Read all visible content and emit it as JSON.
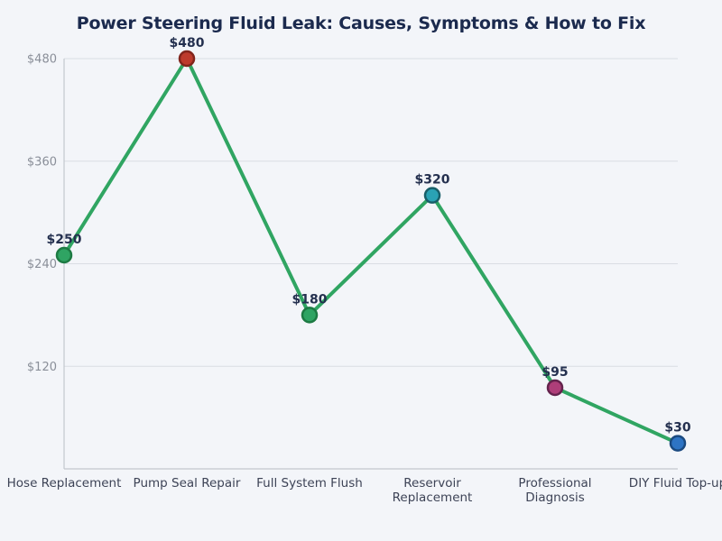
{
  "chart_data": {
    "type": "line",
    "title": "Power Steering Fluid Leak: Causes, Symptoms & How to Fix",
    "categories": [
      "Hose Replacement",
      "Pump Seal Repair",
      "Full System Flush",
      "Reservoir Replacement",
      "Professional Diagnosis",
      "DIY Fluid Top-up"
    ],
    "values": [
      250,
      480,
      180,
      320,
      95,
      30
    ],
    "point_labels": [
      "$250",
      "$480",
      "$180",
      "$320",
      "$95",
      "$30"
    ],
    "xlabel": "",
    "ylabel": "",
    "ylim": [
      0,
      480
    ],
    "yticks": [
      120,
      240,
      360,
      480
    ],
    "ytick_labels": [
      "$120",
      "$240",
      "$360",
      "$480"
    ],
    "grid": true,
    "legend": false,
    "marker_colors": [
      "#2fa463",
      "#bd3a2c",
      "#2fa463",
      "#2aa2b4",
      "#ae3e79",
      "#2e74c4"
    ],
    "marker_stroke_colors": [
      "#1d7a43",
      "#82251c",
      "#1d7a43",
      "#185f69",
      "#64234d",
      "#1b4a80"
    ],
    "colors": {
      "background": "#f3f5f9",
      "title": "#1b2a4e",
      "line": "#30a562",
      "grid": "#dadde3",
      "spine": "#c3c7ce",
      "ytick_text": "#8a8f99",
      "xtick_text": "#3d4356",
      "point_label_text": "#24304f"
    }
  }
}
